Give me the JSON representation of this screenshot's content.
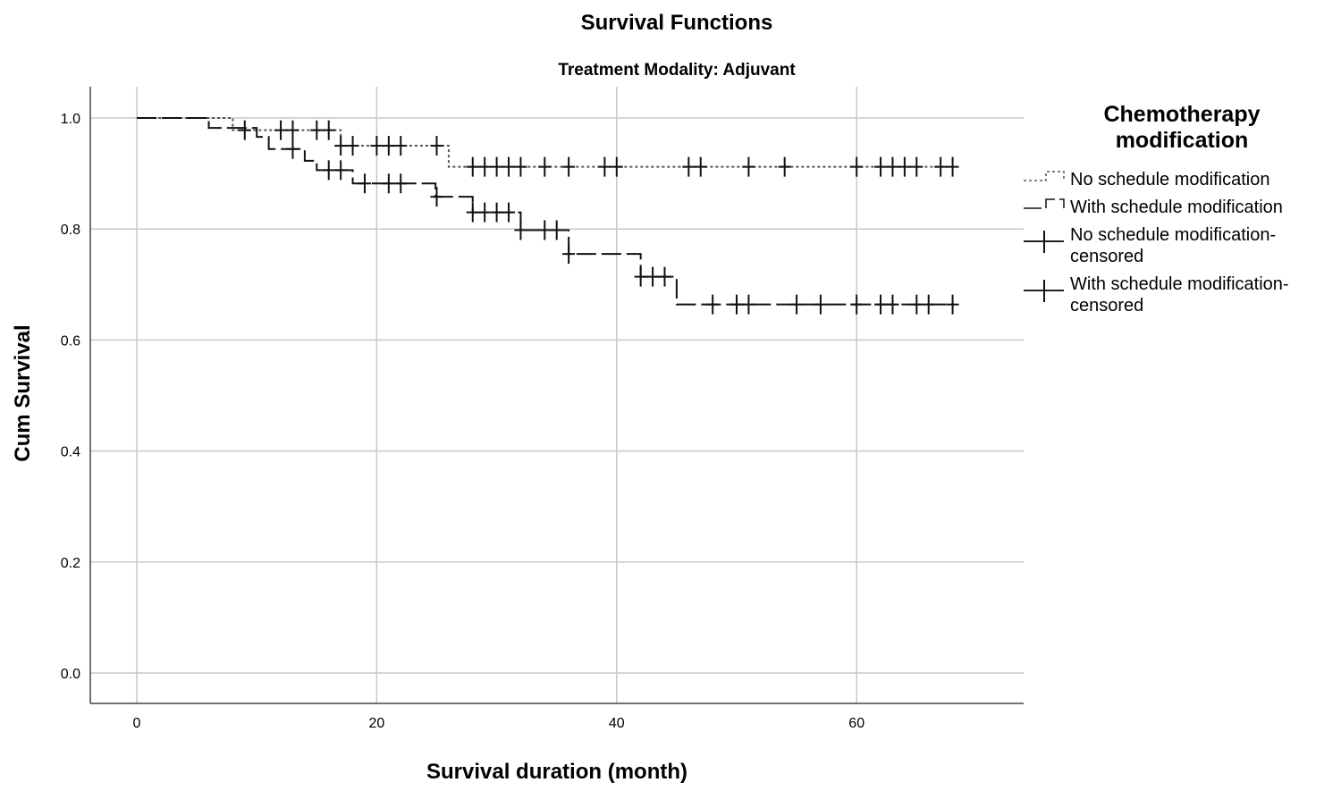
{
  "chart_data": {
    "type": "line",
    "subtype": "kaplan-meier step",
    "title": "Survival Functions",
    "subtitle": "Treatment Modality: Adjuvant",
    "xlabel": "Survival duration (month)",
    "ylabel": "Cum Survival",
    "xlim": [
      -3.8,
      74
    ],
    "ylim": [
      -0.055,
      1.055
    ],
    "xticks": [
      0,
      20,
      40,
      60
    ],
    "xtick_labels": [
      "0",
      "20",
      "40",
      "60"
    ],
    "yticks": [
      0.0,
      0.2,
      0.4,
      0.6,
      0.8,
      1.0
    ],
    "ytick_labels": [
      "0.0",
      "0.2",
      "0.4",
      "0.6",
      "0.8",
      "1.0"
    ],
    "grid": true,
    "legend": {
      "title": "Chemotherapy modification",
      "placement": "right",
      "entries": [
        "No schedule modification",
        "With schedule modification",
        "No schedule modification-censored",
        "With schedule modification-censored"
      ]
    },
    "series": [
      {
        "name": "No schedule modification",
        "style": "dotted",
        "color": "#555555",
        "steps": [
          [
            0,
            1.0
          ],
          [
            8,
            0.978
          ],
          [
            17,
            0.95
          ],
          [
            26,
            0.912
          ]
        ],
        "end_x": 68,
        "censored_x": [
          9,
          12,
          13,
          15,
          16,
          17,
          18,
          20,
          21,
          22,
          25,
          28,
          29,
          30,
          31,
          32,
          34,
          36,
          39,
          40,
          46,
          47,
          51,
          54,
          60,
          62,
          63,
          64,
          65,
          67,
          68
        ]
      },
      {
        "name": "With schedule modification",
        "style": "dashed",
        "color": "#111111",
        "steps": [
          [
            0,
            1.0
          ],
          [
            6,
            0.982
          ],
          [
            10,
            0.966
          ],
          [
            11,
            0.944
          ],
          [
            14,
            0.923
          ],
          [
            15,
            0.906
          ],
          [
            18,
            0.882
          ],
          [
            24.9,
            0.858
          ],
          [
            28,
            0.83
          ],
          [
            32,
            0.798
          ],
          [
            36,
            0.755
          ],
          [
            42,
            0.714
          ],
          [
            45,
            0.664
          ]
        ],
        "end_x": 68,
        "censored_x": [
          13,
          16,
          17,
          19,
          21,
          22,
          25,
          28,
          29,
          30,
          31,
          32,
          34,
          35,
          36,
          42,
          43,
          44,
          48,
          50,
          51,
          55,
          57,
          60,
          62,
          63,
          65,
          66,
          68
        ]
      }
    ]
  }
}
